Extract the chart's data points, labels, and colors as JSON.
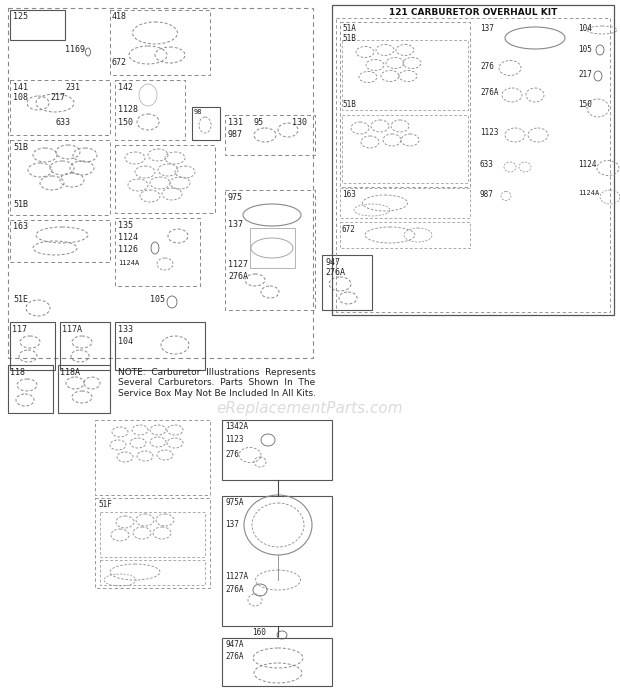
{
  "bg_color": "#ffffff",
  "watermark": "eReplacementParts.com",
  "watermark_color": "#cccccc",
  "section2_title": "121 CARBURETOR OVERHAUL KIT",
  "note_text": "NOTE:  Carburetor  Illustrations  Represents\nSeveral  Carburetors.  Parts  Shown  In  The\nService Box May Not Be Included In All Kits.",
  "label_fontsize": 6,
  "text_color": "#222222"
}
